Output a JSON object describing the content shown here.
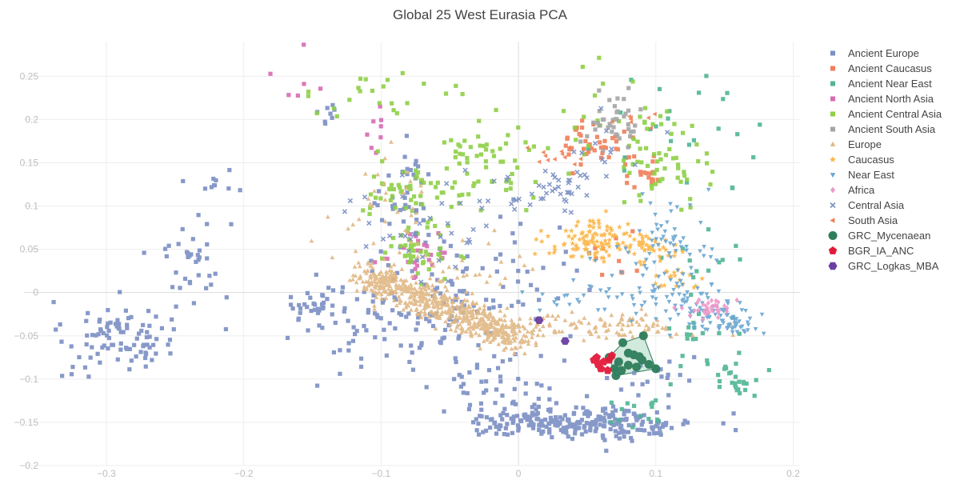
{
  "chart_data": {
    "type": "scatter",
    "title": "Global 25 West Eurasia PCA",
    "xlabel": "",
    "ylabel": "",
    "xlim": [
      -0.36,
      0.205
    ],
    "ylim": [
      -0.2,
      0.29
    ],
    "x_ticks": [
      -0.3,
      -0.2,
      -0.1,
      0,
      0.1,
      0.2
    ],
    "x_tick_labels": [
      "−0.3",
      "−0.2",
      "−0.1",
      "0",
      "0.1",
      "0.2"
    ],
    "y_ticks": [
      -0.2,
      -0.15,
      -0.1,
      -0.05,
      0,
      0.05,
      0.1,
      0.15,
      0.2,
      0.25
    ],
    "y_tick_labels": [
      "−0.2",
      "−0.15",
      "−0.1",
      "−0.05",
      "0",
      "0.05",
      "0.1",
      "0.15",
      "0.2",
      "0.25"
    ],
    "grid": true,
    "legend_position": "right",
    "series": [
      {
        "name": "Ancient Europe",
        "color": "#7b8fc4",
        "symbol": "square",
        "clusters": [
          [
            -0.29,
            -0.05,
            0.02,
            0.02,
            90
          ],
          [
            -0.24,
            0.04,
            0.015,
            0.025,
            35
          ],
          [
            -0.22,
            0.13,
            0.01,
            0.01,
            10
          ],
          [
            -0.32,
            -0.09,
            0.01,
            0.005,
            5
          ],
          [
            -0.1,
            -0.03,
            0.04,
            0.03,
            70
          ],
          [
            -0.08,
            0.1,
            0.01,
            0.03,
            40
          ],
          [
            -0.05,
            -0.01,
            0.04,
            0.04,
            80
          ],
          [
            0.01,
            -0.15,
            0.025,
            0.008,
            110
          ],
          [
            0.07,
            -0.15,
            0.03,
            0.01,
            150
          ],
          [
            -0.02,
            -0.1,
            0.02,
            0.015,
            40
          ],
          [
            0.1,
            -0.1,
            0.02,
            0.01,
            20
          ],
          [
            -0.14,
            0.2,
            0.008,
            0.01,
            8
          ],
          [
            -0.15,
            -0.01,
            0.01,
            0.01,
            20
          ],
          [
            0.0,
            0.04,
            0.03,
            0.03,
            25
          ]
        ]
      },
      {
        "name": "Ancient Caucasus",
        "color": "#f07e58",
        "symbol": "square",
        "clusters": [
          [
            0.055,
            0.175,
            0.01,
            0.015,
            40
          ],
          [
            0.09,
            0.14,
            0.01,
            0.01,
            20
          ],
          [
            0.07,
            0.04,
            0.015,
            0.015,
            10
          ]
        ]
      },
      {
        "name": "Ancient Near East",
        "color": "#4fb595",
        "symbol": "square",
        "clusters": [
          [
            0.16,
            -0.1,
            0.01,
            0.01,
            25
          ],
          [
            0.12,
            0.19,
            0.03,
            0.04,
            25
          ],
          [
            0.13,
            -0.05,
            0.02,
            0.02,
            20
          ],
          [
            0.09,
            -0.14,
            0.015,
            0.01,
            15
          ],
          [
            0.13,
            0.03,
            0.02,
            0.03,
            12
          ]
        ]
      },
      {
        "name": "Ancient North Asia",
        "color": "#d86bb3",
        "symbol": "square",
        "clusters": [
          [
            -0.16,
            0.23,
            0.01,
            0.02,
            6
          ],
          [
            -0.1,
            0.19,
            0.01,
            0.02,
            8
          ],
          [
            -0.075,
            0.045,
            0.015,
            0.015,
            25
          ]
        ]
      },
      {
        "name": "Ancient Central Asia",
        "color": "#8fd045",
        "symbol": "square",
        "clusters": [
          [
            -0.08,
            0.115,
            0.015,
            0.015,
            45
          ],
          [
            -0.075,
            0.05,
            0.012,
            0.015,
            45
          ],
          [
            -0.03,
            0.14,
            0.02,
            0.03,
            55
          ],
          [
            0.11,
            0.15,
            0.015,
            0.02,
            50
          ],
          [
            -0.1,
            0.22,
            0.03,
            0.025,
            25
          ],
          [
            0.02,
            0.18,
            0.03,
            0.03,
            15
          ],
          [
            0.08,
            0.21,
            0.015,
            0.03,
            18
          ]
        ]
      },
      {
        "name": "Ancient South Asia",
        "color": "#a5a5a5",
        "symbol": "square",
        "clusters": [
          [
            0.07,
            0.2,
            0.01,
            0.015,
            40
          ]
        ]
      },
      {
        "name": "Europe",
        "color": "#e0b783",
        "symbol": "triangle-up",
        "trend": {
          "x1": -0.115,
          "y1": 0.025,
          "x2": 0.0,
          "y2": -0.055,
          "count": 600,
          "spread": 0.009
        },
        "clusters": [
          [
            0.05,
            -0.04,
            0.04,
            0.008,
            110
          ],
          [
            -0.09,
            0.09,
            0.02,
            0.03,
            40
          ],
          [
            -0.04,
            0.02,
            0.025,
            0.025,
            30
          ]
        ]
      },
      {
        "name": "Caucasus",
        "color": "#fbb544",
        "symbol": "star",
        "clusters": [
          [
            0.055,
            0.06,
            0.017,
            0.012,
            110
          ],
          [
            0.1,
            0.05,
            0.012,
            0.008,
            40
          ],
          [
            0.115,
            0.015,
            0.01,
            0.008,
            20
          ]
        ]
      },
      {
        "name": "Near East",
        "color": "#6aa6d1",
        "symbol": "triangle-down",
        "clusters": [
          [
            0.11,
            0.05,
            0.015,
            0.025,
            70
          ],
          [
            0.13,
            -0.02,
            0.015,
            0.012,
            60
          ],
          [
            0.155,
            -0.035,
            0.01,
            0.008,
            40
          ],
          [
            0.055,
            -0.005,
            0.025,
            0.008,
            20
          ],
          [
            0.1,
            0.0,
            0.025,
            0.02,
            30
          ]
        ]
      },
      {
        "name": "Africa",
        "color": "#ee99c8",
        "symbol": "diamond",
        "clusters": [
          [
            0.14,
            -0.018,
            0.008,
            0.006,
            35
          ]
        ]
      },
      {
        "name": "Central Asia",
        "color": "#7b8fc4",
        "symbol": "x",
        "clusters": [
          [
            0.03,
            0.12,
            0.015,
            0.015,
            40
          ],
          [
            -0.065,
            0.08,
            0.03,
            0.03,
            40
          ],
          [
            0.06,
            0.17,
            0.02,
            0.02,
            10
          ]
        ]
      },
      {
        "name": "South Asia",
        "color": "#f07e58",
        "symbol": "triangle-left",
        "clusters": [
          [
            0.02,
            0.16,
            0.01,
            0.008,
            12
          ],
          [
            0.085,
            0.2,
            0.008,
            0.01,
            8
          ]
        ]
      },
      {
        "name": "GRC_Mycenaean",
        "color": "#2e7d5b",
        "symbol": "circle",
        "hull": true,
        "hull_fill": "#c7e3d6",
        "points": [
          [
            0.076,
            -0.058
          ],
          [
            0.091,
            -0.05
          ],
          [
            0.066,
            -0.075
          ],
          [
            0.08,
            -0.07
          ],
          [
            0.084,
            -0.072
          ],
          [
            0.088,
            -0.074
          ],
          [
            0.073,
            -0.08
          ],
          [
            0.07,
            -0.088
          ],
          [
            0.075,
            -0.09
          ],
          [
            0.08,
            -0.084
          ],
          [
            0.086,
            -0.086
          ],
          [
            0.095,
            -0.083
          ],
          [
            0.1,
            -0.088
          ],
          [
            0.09,
            -0.078
          ],
          [
            0.071,
            -0.096
          ]
        ]
      },
      {
        "name": "BGR_IA_ANC",
        "color": "#e31a3a",
        "symbol": "pentagon",
        "points": [
          [
            0.055,
            -0.078
          ],
          [
            0.058,
            -0.083
          ],
          [
            0.062,
            -0.08
          ],
          [
            0.066,
            -0.078
          ],
          [
            0.06,
            -0.088
          ],
          [
            0.065,
            -0.09
          ],
          [
            0.068,
            -0.073
          ],
          [
            0.057,
            -0.075
          ]
        ]
      },
      {
        "name": "GRC_Logkas_MBA",
        "color": "#6a3fa2",
        "symbol": "hexagon",
        "points": [
          [
            0.015,
            -0.032
          ],
          [
            0.034,
            -0.056
          ]
        ]
      }
    ]
  }
}
